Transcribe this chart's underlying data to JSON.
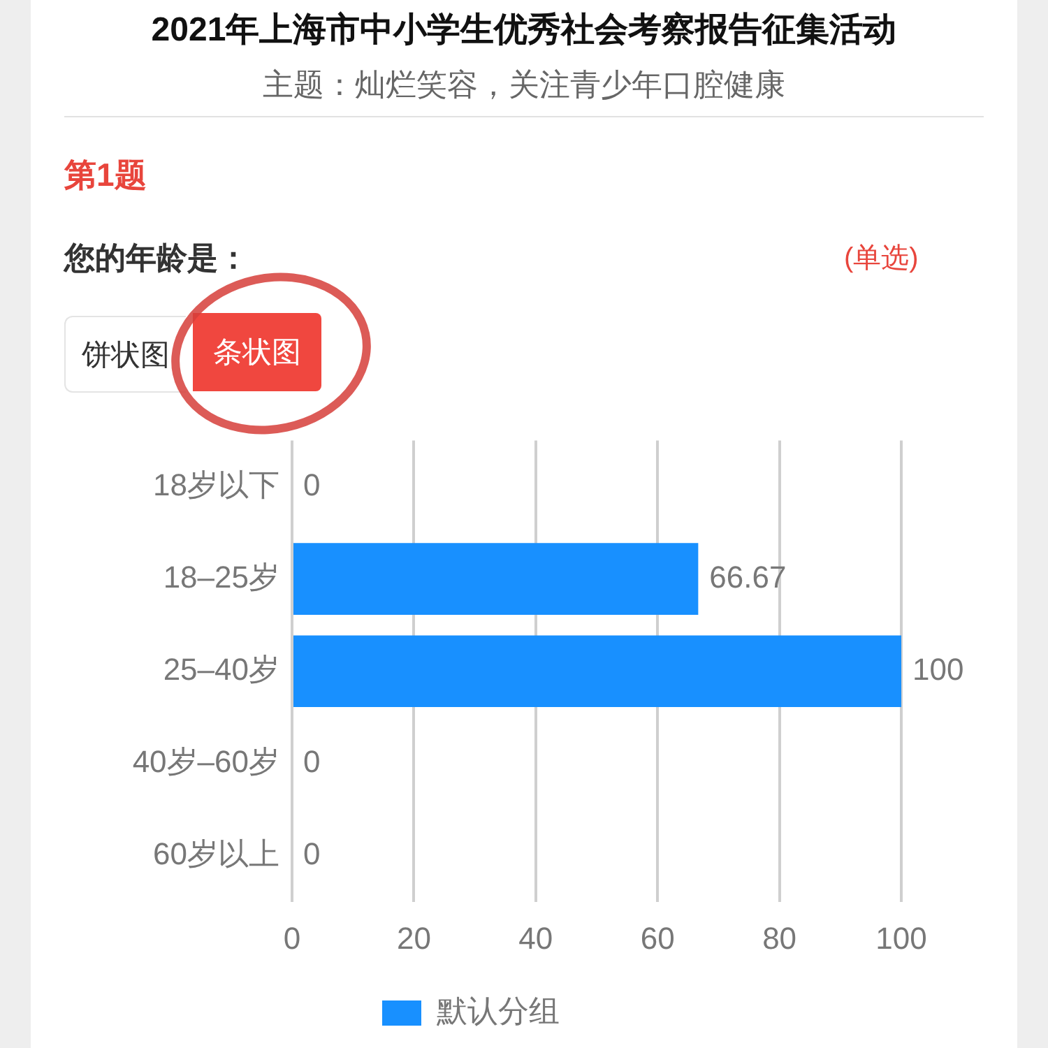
{
  "chart_data": {
    "type": "bar",
    "orientation": "horizontal",
    "title": "2021年上海市中小学生优秀社会考察报告征集活动",
    "subtitle": "主题：灿烂笑容，关注青少年口腔健康",
    "annotations": [
      "第1题",
      "您的年龄是：",
      "(单选)",
      "饼状图",
      "条状图"
    ],
    "categories": [
      "18岁以下",
      "18–25岁",
      "25–40岁",
      "40岁–60岁",
      "60岁以上"
    ],
    "series": [
      {
        "name": "默认分组",
        "color": "#1890ff",
        "values": [
          0,
          66.67,
          100,
          0,
          0
        ]
      }
    ],
    "xlim": [
      0,
      100
    ],
    "xticks": [
      0,
      20,
      40,
      60,
      80,
      100
    ],
    "grid": "x",
    "legend": "bottom",
    "data_labels": true
  }
}
